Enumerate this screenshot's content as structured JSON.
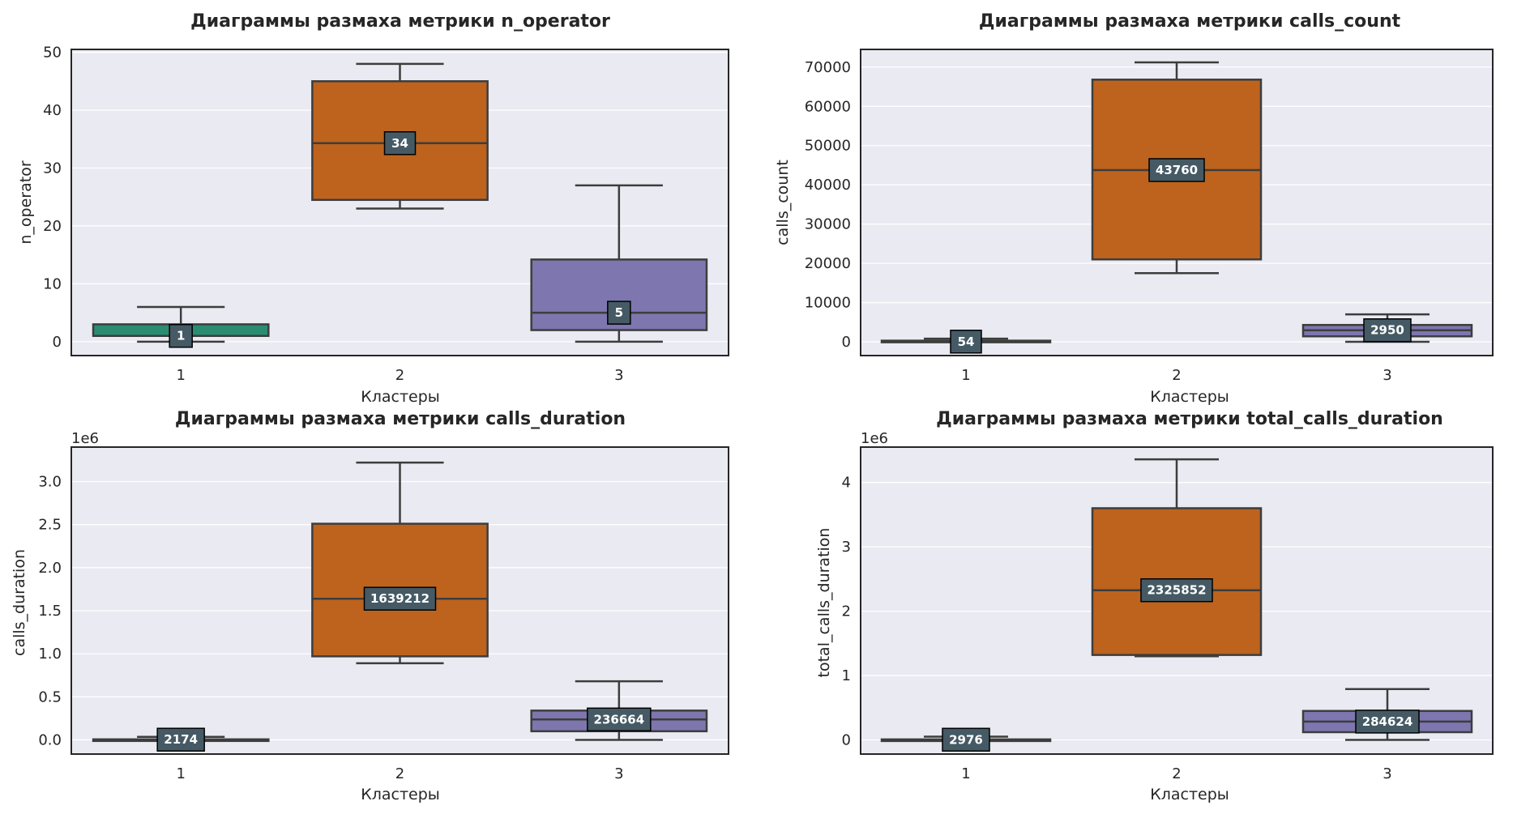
{
  "chart_data": [
    {
      "type": "box",
      "title": "Диаграммы размаха метрики n_operator",
      "xlabel": "Кластеры",
      "ylabel": "n_operator",
      "offset_text": "",
      "categories": [
        "1",
        "2",
        "3"
      ],
      "ylim": [
        -2.4,
        50.5
      ],
      "yticks": [
        0,
        10,
        20,
        30,
        40,
        50
      ],
      "ytick_labels": [
        "0",
        "10",
        "20",
        "30",
        "40",
        "50"
      ],
      "boxes": [
        {
          "category": "1",
          "whisker_low": 0,
          "q1": 1,
          "median": 1,
          "q3": 3,
          "whisker_high": 6,
          "median_label": "1"
        },
        {
          "category": "2",
          "whisker_low": 23,
          "q1": 24.5,
          "median": 34.3,
          "q3": 45,
          "whisker_high": 48,
          "median_label": "34"
        },
        {
          "category": "3",
          "whisker_low": 0,
          "q1": 2,
          "median": 5,
          "q3": 14.2,
          "whisker_high": 27,
          "median_label": "5"
        }
      ]
    },
    {
      "type": "box",
      "title": "Диаграммы размаха метрики calls_count",
      "xlabel": "Кластеры",
      "ylabel": "calls_count",
      "offset_text": "",
      "categories": [
        "1",
        "2",
        "3"
      ],
      "ylim": [
        -3500,
        74500
      ],
      "yticks": [
        0,
        10000,
        20000,
        30000,
        40000,
        50000,
        60000,
        70000
      ],
      "ytick_labels": [
        "0",
        "10000",
        "20000",
        "30000",
        "40000",
        "50000",
        "60000",
        "70000"
      ],
      "boxes": [
        {
          "category": "1",
          "whisker_low": 0,
          "q1": 20,
          "median": 54,
          "q3": 300,
          "whisker_high": 800,
          "median_label": "54"
        },
        {
          "category": "2",
          "whisker_low": 17500,
          "q1": 21000,
          "median": 43760,
          "q3": 66800,
          "whisker_high": 71200,
          "median_label": "43760"
        },
        {
          "category": "3",
          "whisker_low": 0,
          "q1": 1400,
          "median": 2950,
          "q3": 4300,
          "whisker_high": 7000,
          "median_label": "2950"
        }
      ]
    },
    {
      "type": "box",
      "title": "Диаграммы размаха метрики calls_duration",
      "xlabel": "Кластеры",
      "ylabel": "calls_duration",
      "offset_text": "1e6",
      "categories": [
        "1",
        "2",
        "3"
      ],
      "ylim": [
        -0.165,
        3.4
      ],
      "yticks": [
        0,
        0.5,
        1,
        1.5,
        2,
        2.5,
        3
      ],
      "ytick_labels": [
        "0.0",
        "0.5",
        "1.0",
        "1.5",
        "2.0",
        "2.5",
        "3.0"
      ],
      "boxes": [
        {
          "category": "1",
          "whisker_low": 0,
          "q1": 0.001,
          "median": 0.002174,
          "q3": 0.006,
          "whisker_high": 0.035,
          "median_label": "2174"
        },
        {
          "category": "2",
          "whisker_low": 0.89,
          "q1": 0.97,
          "median": 1.639212,
          "q3": 2.51,
          "whisker_high": 3.22,
          "median_label": "1639212"
        },
        {
          "category": "3",
          "whisker_low": 0,
          "q1": 0.1,
          "median": 0.236664,
          "q3": 0.34,
          "whisker_high": 0.68,
          "median_label": "236664"
        }
      ]
    },
    {
      "type": "box",
      "title": "Диаграммы размаха метрики total_calls_duration",
      "xlabel": "Кластеры",
      "ylabel": "total_calls_duration",
      "offset_text": "1e6",
      "categories": [
        "1",
        "2",
        "3"
      ],
      "ylim": [
        -0.22,
        4.55
      ],
      "yticks": [
        0,
        1,
        2,
        3,
        4
      ],
      "ytick_labels": [
        "0",
        "1",
        "2",
        "3",
        "4"
      ],
      "boxes": [
        {
          "category": "1",
          "whisker_low": 0,
          "q1": 0.001,
          "median": 0.002976,
          "q3": 0.008,
          "whisker_high": 0.05,
          "median_label": "2976"
        },
        {
          "category": "2",
          "whisker_low": 1.3,
          "q1": 1.32,
          "median": 2.325852,
          "q3": 3.6,
          "whisker_high": 4.36,
          "median_label": "2325852"
        },
        {
          "category": "3",
          "whisker_low": 0,
          "q1": 0.12,
          "median": 0.284624,
          "q3": 0.45,
          "whisker_high": 0.79,
          "median_label": "284624"
        }
      ]
    }
  ],
  "colors": {
    "background": "#eaeaf2",
    "grid": "#ffffff",
    "frame": "#262626",
    "line": "#3d3d3d",
    "median_box": "#455a64",
    "cluster_fills": [
      "#2a8d73",
      "#bd631e",
      "#7d76af"
    ]
  }
}
